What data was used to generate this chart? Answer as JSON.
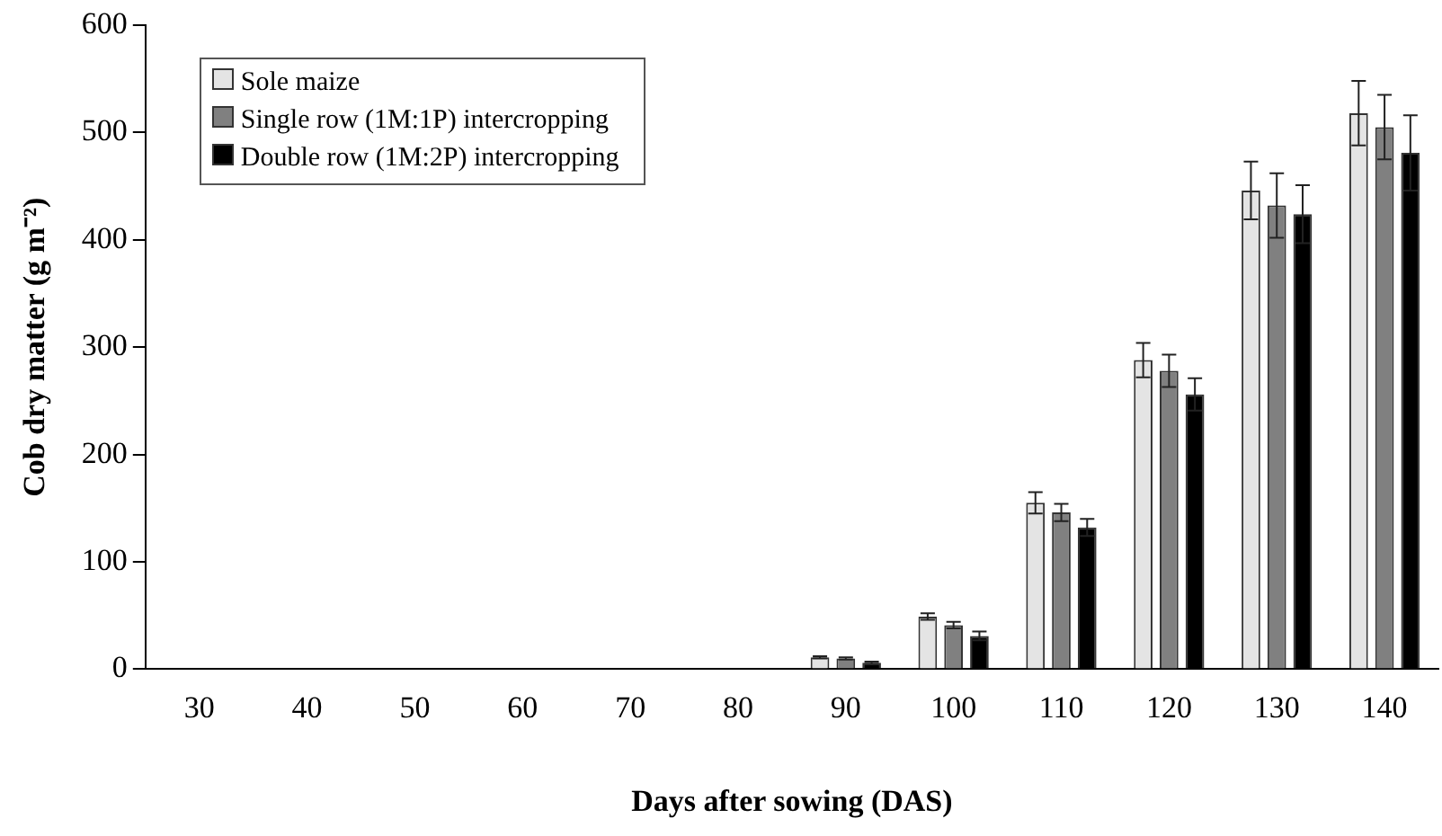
{
  "chart_data": {
    "type": "bar",
    "xlabel": "Days after sowing (DAS)",
    "ylabel": "Cob dry matter (g m⁻²)",
    "categories": [
      "30",
      "40",
      "50",
      "60",
      "70",
      "80",
      "90",
      "100",
      "110",
      "120",
      "130",
      "140"
    ],
    "series": [
      {
        "name": "Sole maize",
        "color": "#e4e4e4",
        "values": [
          0,
          0,
          0,
          0,
          0,
          0,
          11,
          49,
          155,
          288,
          446,
          518
        ],
        "errors": [
          null,
          null,
          null,
          null,
          null,
          null,
          1,
          3,
          10,
          16,
          27,
          30
        ]
      },
      {
        "name": "Single row (1M:1P) intercropping",
        "color": "#808080",
        "values": [
          0,
          0,
          0,
          0,
          0,
          0,
          10,
          41,
          146,
          278,
          432,
          505
        ],
        "errors": [
          null,
          null,
          null,
          null,
          null,
          null,
          1,
          3,
          8,
          15,
          30,
          30
        ]
      },
      {
        "name": "Double row (1M:2P) intercropping",
        "color": "#000000",
        "values": [
          0,
          0,
          0,
          0,
          0,
          0,
          6,
          31,
          132,
          256,
          424,
          481
        ],
        "errors": [
          null,
          null,
          null,
          null,
          null,
          null,
          1,
          4,
          8,
          15,
          27,
          35
        ]
      }
    ],
    "ylim": [
      0,
      600
    ],
    "yticks": [
      0,
      100,
      200,
      300,
      400,
      500,
      600
    ],
    "grid": false,
    "legend": "top left"
  }
}
